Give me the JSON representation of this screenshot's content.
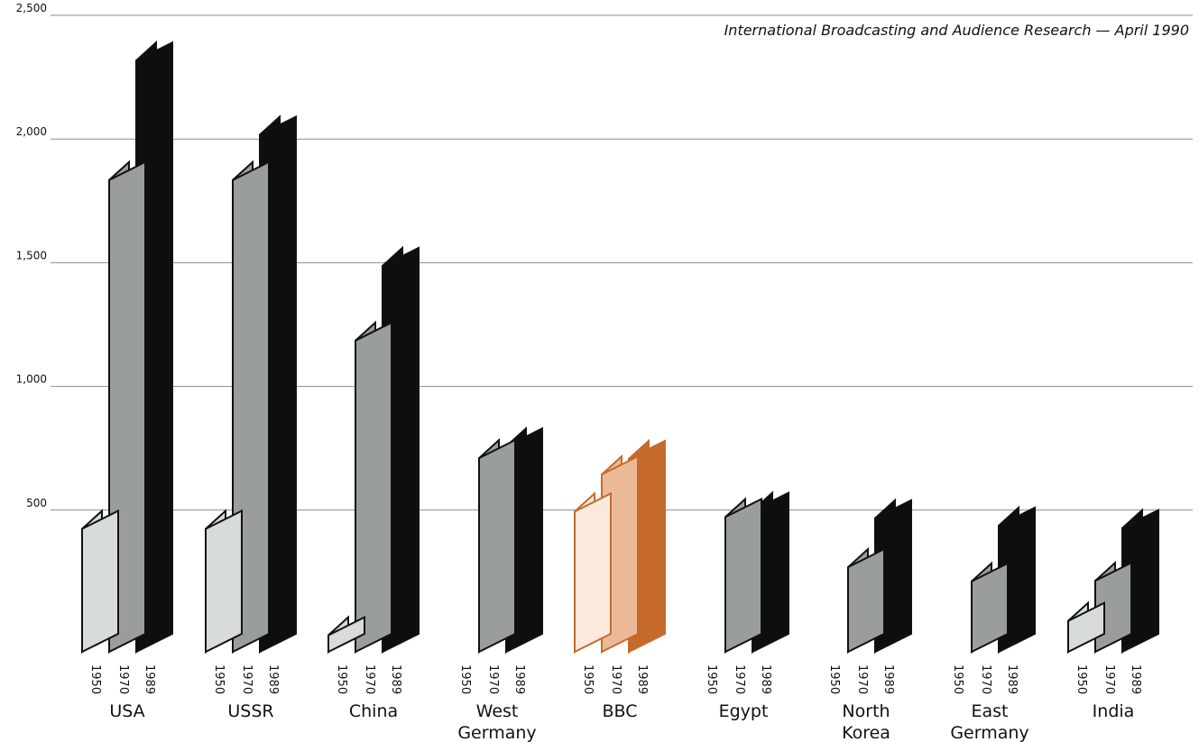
{
  "source_note": "International Broadcasting and Audience Research — April 1990",
  "chart_data": {
    "type": "bar",
    "title": "",
    "xlabel": "",
    "ylabel": "",
    "ylim": [
      0,
      2500
    ],
    "yticks": [
      500,
      1000,
      1500,
      2000,
      2500
    ],
    "ytick_labels": [
      "500",
      "1,000",
      "1,500",
      "2,000",
      "2,500"
    ],
    "grid": true,
    "categories": [
      {
        "lines": [
          "USA"
        ]
      },
      {
        "lines": [
          "USSR"
        ]
      },
      {
        "lines": [
          "China"
        ]
      },
      {
        "lines": [
          "West",
          "Germany"
        ]
      },
      {
        "lines": [
          "BBC"
        ]
      },
      {
        "lines": [
          "Egypt"
        ]
      },
      {
        "lines": [
          "North",
          "Korea"
        ]
      },
      {
        "lines": [
          "East",
          "Germany"
        ]
      },
      {
        "lines": [
          "India"
        ]
      }
    ],
    "year_labels": [
      "1950",
      "1970",
      "1989"
    ],
    "series": [
      {
        "values": [
          497,
          497,
          67,
          null,
          567,
          null,
          null,
          null,
          125
        ]
      },
      {
        "values": [
          1907,
          1907,
          1258,
          783,
          717,
          545,
          342,
          285,
          287
        ]
      },
      {
        "values": [
          2390,
          2090,
          1560,
          830,
          780,
          570,
          540,
          510,
          500
        ]
      }
    ],
    "colors": {
      "default": [
        "#d8dbdb",
        "#9a9d9e",
        "#0e0e0e"
      ],
      "highlight": [
        "#fbe9dd",
        "#ecb998",
        "#c66a2c"
      ],
      "highlight_category": "BBC",
      "grid": "#8a8a8a"
    }
  }
}
